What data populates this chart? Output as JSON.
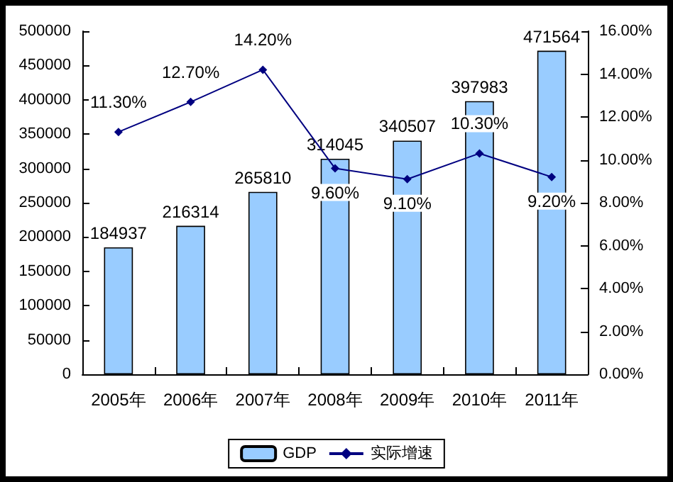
{
  "chart_data": {
    "type": "bar",
    "categories": [
      "2005年",
      "2006年",
      "2007年",
      "2008年",
      "2009年",
      "2010年",
      "2011年"
    ],
    "series": [
      {
        "name": "GDP",
        "color": "#99ccff",
        "values": [
          184937,
          216314,
          265810,
          314045,
          340507,
          397983,
          471564
        ],
        "value_labels": [
          "184937",
          "216314",
          "265810",
          "314045",
          "340507",
          "397983",
          "471564"
        ]
      },
      {
        "name": "实际增速",
        "type": "line",
        "axis": "y2",
        "color": "#000080",
        "values": [
          11.3,
          12.7,
          14.2,
          9.6,
          9.1,
          10.3,
          9.2
        ],
        "value_labels": [
          "11.30%",
          "12.70%",
          "14.20%",
          "9.60%",
          "9.10%",
          "10.30%",
          "9.20%"
        ]
      }
    ],
    "ylim": [
      0,
      500000
    ],
    "yticks": [
      0,
      50000,
      100000,
      150000,
      200000,
      250000,
      300000,
      350000,
      400000,
      450000,
      500000
    ],
    "y2lim": [
      0,
      16
    ],
    "y2ticks": [
      {
        "value": 0,
        "label": "0.00%"
      },
      {
        "value": 2,
        "label": "2.00%"
      },
      {
        "value": 4,
        "label": "4.00%"
      },
      {
        "value": 6,
        "label": "6.00%"
      },
      {
        "value": 8,
        "label": "8.00%"
      },
      {
        "value": 10,
        "label": "10.00%"
      },
      {
        "value": 12,
        "label": "12.00%"
      },
      {
        "value": 14,
        "label": "14.00%"
      },
      {
        "value": 16,
        "label": "16.00%"
      }
    ],
    "grid": false,
    "legend": "bottom",
    "marker": "diamond",
    "line_style": "solid"
  }
}
